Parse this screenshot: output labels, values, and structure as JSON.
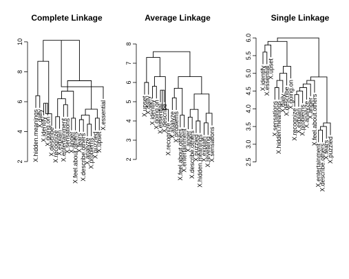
{
  "chart_data": [
    {
      "type": "dendrogram",
      "title": "Complete Linkage",
      "ylim": [
        1.5,
        10.5
      ],
      "yticks": [
        2,
        4,
        6,
        8,
        10
      ],
      "leaves": [
        "X.hidden.meanings",
        "X.daily",
        "X.identify",
        "X.going.on",
        "X.describe",
        "X.recognize",
        "X.explain",
        "X.entertainment",
        "X.sensations",
        "X.anger",
        "X.feel.about.others",
        "X.fears",
        "X.describe.others",
        "X.analyze",
        "X.problems",
        "X.puzzled",
        "X.upset",
        "X.essential"
      ],
      "merges": [
        [
          0,
          1,
          6.4
        ],
        [
          2,
          3,
          5.9
        ],
        [
          19,
          4,
          5.2
        ],
        [
          18,
          20,
          8.7
        ],
        [
          5,
          6,
          5.0
        ],
        [
          7,
          8,
          5.8
        ],
        [
          22,
          23,
          6.2
        ],
        [
          9,
          10,
          4.9
        ],
        [
          24,
          25,
          6.7
        ],
        [
          11,
          12,
          4.8
        ],
        [
          13,
          14,
          4.5
        ],
        [
          27,
          28,
          5.1
        ],
        [
          15,
          16,
          4.9
        ],
        [
          29,
          30,
          5.5
        ],
        [
          26,
          31,
          7.4
        ],
        [
          21,
          32,
          10.1
        ],
        [
          17,
          33,
          7.0
        ]
      ]
    },
    {
      "type": "dendrogram",
      "title": "Average Linkage",
      "ylim": [
        1.5,
        8.5
      ],
      "yticks": [
        2,
        3,
        4,
        5,
        6,
        7,
        8
      ],
      "leaves": [
        "X.upset",
        "X.daily",
        "X.identify",
        "X.going.on",
        "X.essential",
        "X.describe",
        "X.recognize",
        "X.analyze",
        "X.problems",
        "X.feel.about.others",
        "X.entertainment",
        "X.anger",
        "X.describe.others",
        "X.puzzled",
        "X.hidden.meanings",
        "X.explain",
        "X.revealing",
        "X.sensations"
      ],
      "merges": [
        [
          0,
          1,
          6.0
        ],
        [
          2,
          3,
          5.8
        ],
        [
          4,
          5,
          5.6
        ],
        [
          20,
          6,
          4.6
        ],
        [
          19,
          21,
          6.3
        ],
        [
          18,
          22,
          7.3
        ],
        [
          7,
          8,
          5.2
        ],
        [
          9,
          10,
          4.3
        ],
        [
          24,
          25,
          5.7
        ],
        [
          11,
          12,
          4.2
        ],
        [
          13,
          14,
          4.0
        ],
        [
          27,
          28,
          4.6
        ],
        [
          15,
          16,
          3.9
        ],
        [
          17,
          30,
          4.4
        ],
        [
          29,
          31,
          5.4
        ],
        [
          26,
          32,
          6.3
        ],
        [
          23,
          33,
          7.6
        ]
      ]
    },
    {
      "type": "dendrogram",
      "title": "Single Linkage",
      "ylim": [
        2.3,
        6.1
      ],
      "yticks": [
        2.5,
        3.0,
        3.5,
        4.0,
        4.5,
        5.0,
        5.5,
        6.0
      ],
      "leaves": [
        "X.identify",
        "X.essential",
        "X.upset",
        "X.sensations",
        "X.hidden.meanings",
        "X.daily",
        "X.describe",
        "X.going.on",
        "X.recognize",
        "X.explain",
        "X.problems",
        "X.analyze",
        "X.anger",
        "X.feel.about.others",
        "X.entertainment",
        "X.describe.others",
        "X.fears",
        "X.puzzled"
      ],
      "merges": [
        [
          0,
          1,
          5.6
        ],
        [
          18,
          2,
          5.8
        ],
        [
          3,
          4,
          4.6
        ],
        [
          20,
          5,
          4.8
        ],
        [
          21,
          6,
          5.0
        ],
        [
          22,
          7,
          5.2
        ],
        [
          19,
          23,
          5.9
        ],
        [
          8,
          9,
          4.4
        ],
        [
          25,
          10,
          4.5
        ],
        [
          26,
          11,
          4.6
        ],
        [
          27,
          12,
          4.7
        ],
        [
          28,
          13,
          4.8
        ],
        [
          14,
          15,
          3.4
        ],
        [
          30,
          16,
          3.5
        ],
        [
          31,
          17,
          3.6
        ],
        [
          29,
          32,
          4.9
        ],
        [
          24,
          33,
          6.0
        ]
      ]
    }
  ]
}
